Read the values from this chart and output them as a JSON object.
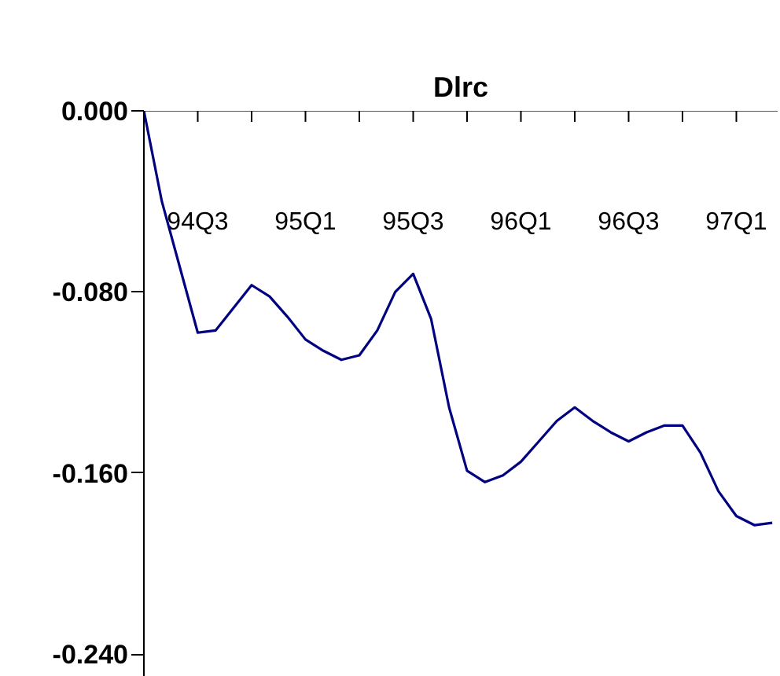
{
  "chart_data": {
    "type": "line",
    "title": "Dlrc",
    "color": "#000080",
    "categories": [
      null,
      null,
      null,
      "94Q3",
      null,
      null,
      null,
      null,
      null,
      "95Q1",
      null,
      null,
      null,
      null,
      null,
      "95Q3",
      null,
      null,
      null,
      null,
      null,
      "96Q1",
      null,
      null,
      null,
      null,
      null,
      "96Q3",
      null,
      null,
      null,
      null,
      null,
      "97Q1",
      null,
      null
    ],
    "values": [
      0,
      -0.04,
      -0.069,
      -0.098,
      -0.097,
      -0.087,
      -0.077,
      -0.082,
      -0.091,
      -0.101,
      -0.106,
      -0.11,
      -0.108,
      -0.097,
      -0.08,
      -0.072,
      -0.092,
      -0.131,
      -0.159,
      -0.164,
      -0.161,
      -0.155,
      -0.146,
      -0.137,
      -0.131,
      -0.137,
      -0.142,
      -0.146,
      -0.142,
      -0.139,
      -0.139,
      -0.151,
      -0.168,
      -0.179,
      -0.183,
      -0.182
    ],
    "ylim": [
      -0.25,
      0
    ],
    "yticks": [
      {
        "value": -0.24,
        "label": "-0.240"
      },
      {
        "value": -0.16,
        "label": "-0.160"
      },
      {
        "value": -0.08,
        "label": "-0.080"
      },
      {
        "value": 0,
        "label": "0.000"
      }
    ]
  }
}
